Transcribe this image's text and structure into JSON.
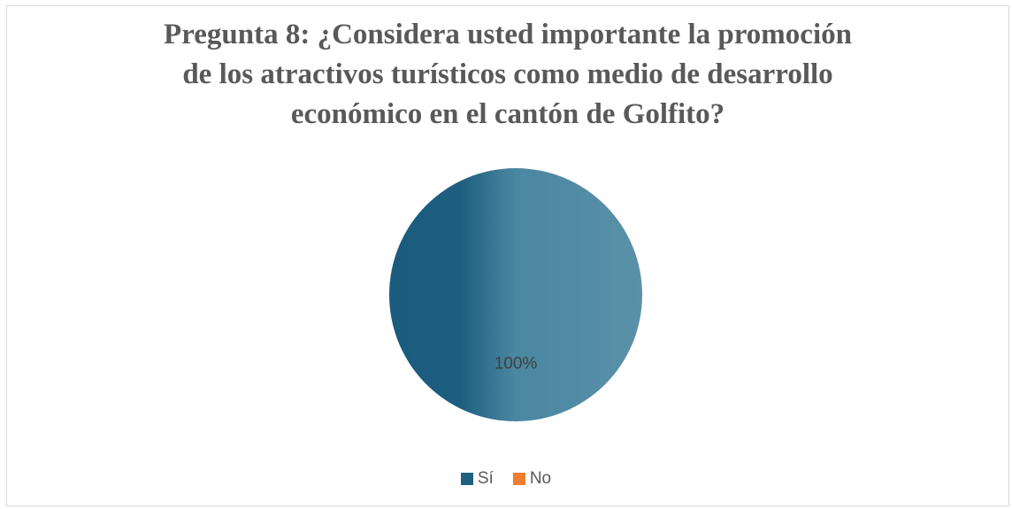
{
  "chart_data": {
    "type": "pie",
    "title_lines": [
      "Pregunta 8: ¿Considera usted importante la promoción",
      "de los atractivos turísticos como medio de desarrollo",
      "económico en el cantón de Golfito?"
    ],
    "categories": [
      "Sí",
      "No"
    ],
    "values": [
      100,
      0
    ],
    "data_labels": [
      "100%",
      ""
    ],
    "colors": [
      "#1f5f82",
      "#ed7d31"
    ],
    "legend_position": "bottom"
  }
}
